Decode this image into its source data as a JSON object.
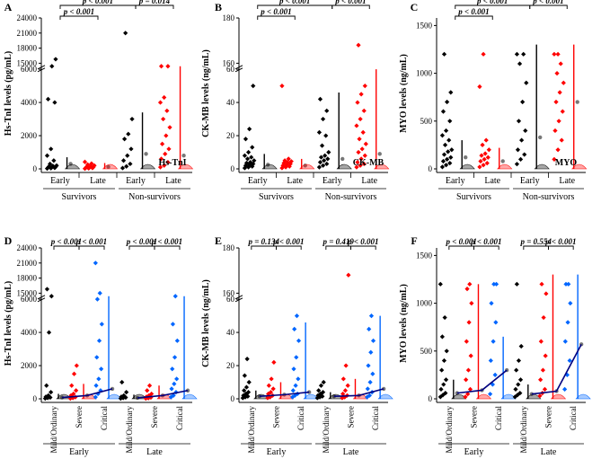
{
  "chart_data": [
    {
      "panel": "A",
      "type": "scatter",
      "biomarker": "Hs-TnI",
      "ylabel": "Hs-TnI levels (pg/mL)",
      "yticks": [
        "0",
        "2000",
        "4000",
        "6000",
        "15000",
        "18000",
        "21000",
        "24000"
      ],
      "ylim": [
        0,
        24000
      ],
      "groups": [
        "Early",
        "Late",
        "Early",
        "Late"
      ],
      "colors": [
        "#000000",
        "#ff0000",
        "#000000",
        "#ff0000"
      ],
      "categories": [
        "Survivors",
        "Non-survivors"
      ],
      "title": "Hs-TnI",
      "comparisons": [
        {
          "label": "p < 0.001",
          "from": 0,
          "to": 1
        },
        {
          "label": "p < 0.001",
          "from": 0,
          "to": 2
        },
        {
          "label": "p < 0.001",
          "from": 1,
          "to": 3
        },
        {
          "label": "p = 0.014",
          "from": 2,
          "to": 3
        }
      ],
      "points": [
        [
          20,
          40,
          60,
          80,
          100,
          120,
          150,
          180,
          200,
          300,
          500,
          800,
          1200,
          4000,
          4200,
          14500,
          15800
        ],
        [
          15,
          30,
          50,
          70,
          90,
          110,
          130,
          150,
          200,
          260,
          320,
          420
        ],
        [
          50,
          150,
          300,
          500,
          800,
          1200,
          1800,
          2100,
          3000,
          21000
        ],
        [
          100,
          200,
          400,
          600,
          900,
          1200,
          1500,
          2000,
          2500,
          3000,
          3500,
          4000,
          4300,
          7000,
          7600
        ]
      ],
      "medians": [
        300,
        120,
        900,
        800
      ],
      "whiskers": [
        [
          0,
          700
        ],
        [
          0,
          350
        ],
        [
          0,
          3400
        ],
        [
          0,
          6800
        ]
      ]
    },
    {
      "panel": "B",
      "type": "scatter",
      "biomarker": "CK-MB",
      "ylabel": "CK-MB levels (ng/mL)",
      "yticks": [
        "0",
        "20",
        "40",
        "60",
        "160",
        "180"
      ],
      "ylim": [
        0,
        180
      ],
      "groups": [
        "Early",
        "Late",
        "Early",
        "Late"
      ],
      "colors": [
        "#000000",
        "#ff0000",
        "#000000",
        "#ff0000"
      ],
      "categories": [
        "Survivors",
        "Non-survivors"
      ],
      "title": "CK-MB",
      "comparisons": [
        {
          "label": "p < 0.001",
          "from": 0,
          "to": 1
        },
        {
          "label": "p < 0.001",
          "from": 0,
          "to": 2
        },
        {
          "label": "p < 0.001",
          "from": 1,
          "to": 3
        },
        {
          "label": "p < 0.001",
          "from": 2,
          "to": 3
        }
      ],
      "points": [
        [
          0.5,
          1,
          1.5,
          2,
          2.5,
          3,
          3.5,
          4,
          5,
          6,
          7,
          8,
          10,
          13,
          18,
          24,
          50
        ],
        [
          0.5,
          1,
          1.5,
          2,
          2.5,
          3,
          3.5,
          4,
          4.5,
          5,
          6,
          50
        ],
        [
          1,
          2,
          3,
          4,
          5,
          6,
          7,
          8,
          10,
          14,
          20,
          22,
          30,
          35,
          42
        ],
        [
          1,
          2,
          3,
          4,
          6,
          8,
          10,
          12,
          15,
          18,
          22,
          26,
          30,
          35,
          40,
          45,
          50,
          168
        ]
      ],
      "medians": [
        2.5,
        2.0,
        6.0,
        9.0
      ],
      "whiskers": [
        [
          0,
          9
        ],
        [
          0,
          6
        ],
        [
          0,
          46
        ],
        [
          0,
          60
        ]
      ]
    },
    {
      "panel": "C",
      "type": "scatter",
      "biomarker": "MYO",
      "ylabel": "MYO levels (ng/mL)",
      "yticks": [
        "0",
        "500",
        "1000",
        "1500"
      ],
      "ylim": [
        0,
        1500
      ],
      "groups": [
        "Early",
        "Late",
        "Early",
        "Late"
      ],
      "colors": [
        "#000000",
        "#ff0000",
        "#000000",
        "#ff0000"
      ],
      "categories": [
        "Survivors",
        "Non-survivors"
      ],
      "title": "MYO",
      "comparisons": [
        {
          "label": "p < 0.001",
          "from": 0,
          "to": 1
        },
        {
          "label": "p < 0.001",
          "from": 0,
          "to": 2
        },
        {
          "label": "p < 0.001",
          "from": 1,
          "to": 3
        },
        {
          "label": "p < 0.001",
          "from": 2,
          "to": 3
        }
      ],
      "points": [
        [
          20,
          40,
          60,
          80,
          100,
          120,
          150,
          180,
          200,
          250,
          300,
          350,
          400,
          500,
          600,
          700,
          800,
          1200
        ],
        [
          20,
          40,
          60,
          80,
          100,
          120,
          140,
          160,
          200,
          250,
          300,
          860,
          1200
        ],
        [
          50,
          100,
          150,
          200,
          300,
          400,
          500,
          700,
          900,
          1100,
          1200,
          1200
        ],
        [
          100,
          200,
          300,
          400,
          500,
          600,
          700,
          800,
          900,
          1000,
          1100,
          1200,
          1200
        ]
      ],
      "medians": [
        120,
        80,
        330,
        700
      ],
      "whiskers": [
        [
          0,
          300
        ],
        [
          0,
          220
        ],
        [
          0,
          1300
        ],
        [
          0,
          1300
        ]
      ]
    },
    {
      "panel": "D",
      "type": "scatter",
      "biomarker": "Hs-TnI",
      "ylabel": "Hs-TnI levels (pg/mL)",
      "yticks": [
        "0",
        "2000",
        "4000",
        "6000",
        "15000",
        "18000",
        "21000",
        "24000"
      ],
      "ylim": [
        0,
        24000
      ],
      "groups": [
        "Mild/Ordinary",
        "Severe",
        "Critical",
        "Mild/Ordinary",
        "Severe",
        "Critical"
      ],
      "colors": [
        "#000000",
        "#ff0000",
        "#0066ff",
        "#000000",
        "#ff0000",
        "#0066ff"
      ],
      "categories": [
        "Early",
        "Late"
      ],
      "title": "Hs-TnI",
      "comparisons": [
        {
          "label": "p < 0.001",
          "from": 0,
          "to": 1
        },
        {
          "label": "p < 0.001",
          "from": 1,
          "to": 2
        },
        {
          "label": "p < 0.001",
          "from": 3,
          "to": 4
        },
        {
          "label": "p < 0.001",
          "from": 4,
          "to": 5
        }
      ],
      "points": [
        [
          20,
          50,
          80,
          120,
          200,
          400,
          800,
          4000,
          14500,
          15800
        ],
        [
          20,
          50,
          100,
          200,
          300,
          500,
          800,
          1500,
          2000
        ],
        [
          100,
          300,
          500,
          800,
          1200,
          1800,
          2500,
          3500,
          4500,
          6000,
          15000,
          21000
        ],
        [
          20,
          50,
          80,
          120,
          200,
          400,
          1000
        ],
        [
          20,
          40,
          80,
          120,
          200,
          300,
          500,
          800
        ],
        [
          100,
          200,
          400,
          600,
          900,
          1200,
          1800,
          2500,
          3500,
          4500,
          7000
        ]
      ],
      "medians": [
        80,
        200,
        600,
        60,
        200,
        500
      ],
      "whiskers": [
        [
          0,
          300
        ],
        [
          0,
          900
        ],
        [
          0,
          6800
        ],
        [
          0,
          250
        ],
        [
          0,
          800
        ],
        [
          0,
          6800
        ]
      ]
    },
    {
      "panel": "E",
      "type": "scatter",
      "biomarker": "CK-MB",
      "ylabel": "CK-MB levels (ng/mL)",
      "yticks": [
        "0",
        "20",
        "40",
        "60",
        "160",
        "180"
      ],
      "ylim": [
        0,
        180
      ],
      "groups": [
        "Mild/Ordinary",
        "Severe",
        "Critical",
        "Mild/Ordinary",
        "Severe",
        "Critical"
      ],
      "colors": [
        "#000000",
        "#ff0000",
        "#0066ff",
        "#000000",
        "#ff0000",
        "#0066ff"
      ],
      "categories": [
        "Early",
        "Late"
      ],
      "title": "CK-MB",
      "comparisons": [
        {
          "label": "p = 0.134",
          "from": 0,
          "to": 1
        },
        {
          "label": "p < 0.001",
          "from": 1,
          "to": 2
        },
        {
          "label": "p = 0.419",
          "from": 3,
          "to": 4
        },
        {
          "label": "p < 0.001",
          "from": 4,
          "to": 5
        }
      ],
      "points": [
        [
          0.5,
          1,
          1.5,
          2,
          3,
          4,
          5,
          7,
          10,
          14,
          24
        ],
        [
          0.5,
          1,
          2,
          3,
          4,
          6,
          8,
          12,
          22
        ],
        [
          1,
          2,
          3,
          5,
          8,
          12,
          18,
          25,
          35,
          42,
          50
        ],
        [
          0.5,
          1,
          1.5,
          2,
          3,
          4,
          5,
          8,
          10
        ],
        [
          0.5,
          1,
          2,
          3,
          5,
          8,
          12,
          20,
          168
        ],
        [
          1,
          2,
          4,
          6,
          10,
          15,
          20,
          28,
          35,
          42,
          50
        ]
      ],
      "medians": [
        1.5,
        2.5,
        4.0,
        1.5,
        2.0,
        6.0
      ],
      "whiskers": [
        [
          0,
          5
        ],
        [
          0,
          10
        ],
        [
          0,
          46
        ],
        [
          0,
          4
        ],
        [
          0,
          12
        ],
        [
          0,
          50
        ]
      ]
    },
    {
      "panel": "F",
      "type": "scatter",
      "biomarker": "MYO",
      "ylabel": "MYO levels (ng/mL)",
      "yticks": [
        "0",
        "500",
        "1000",
        "1500"
      ],
      "ylim": [
        0,
        1500
      ],
      "groups": [
        "Mild/Ordinary",
        "Severe",
        "Critical",
        "Mild/Ordinary",
        "Severe",
        "Critical"
      ],
      "colors": [
        "#000000",
        "#ff0000",
        "#0066ff",
        "#000000",
        "#ff0000",
        "#0066ff"
      ],
      "categories": [
        "Early",
        "Late"
      ],
      "title": "MYO",
      "comparisons": [
        {
          "label": "p < 0.001",
          "from": 0,
          "to": 1
        },
        {
          "label": "p < 0.001",
          "from": 1,
          "to": 2
        },
        {
          "label": "p = 0.554",
          "from": 3,
          "to": 4
        },
        {
          "label": "p < 0.001",
          "from": 4,
          "to": 5
        }
      ],
      "points": [
        [
          20,
          40,
          60,
          100,
          150,
          200,
          300,
          400,
          500,
          650,
          850,
          1200
        ],
        [
          20,
          50,
          100,
          200,
          300,
          450,
          600,
          800,
          1000,
          1150,
          1200
        ],
        [
          50,
          150,
          250,
          400,
          600,
          800,
          1000,
          1200,
          1200
        ],
        [
          20,
          40,
          60,
          100,
          150,
          200,
          300,
          400,
          550,
          1200
        ],
        [
          30,
          60,
          100,
          200,
          300,
          450,
          600,
          850,
          1100,
          1200
        ],
        [
          100,
          250,
          400,
          600,
          800,
          1000,
          1200,
          1200
        ]
      ],
      "medians": [
        60,
        90,
        300,
        50,
        80,
        570
      ],
      "whiskers": [
        [
          0,
          200
        ],
        [
          0,
          1200
        ],
        [
          0,
          650
        ],
        [
          0,
          150
        ],
        [
          0,
          1300
        ],
        [
          0,
          1300
        ]
      ]
    }
  ]
}
